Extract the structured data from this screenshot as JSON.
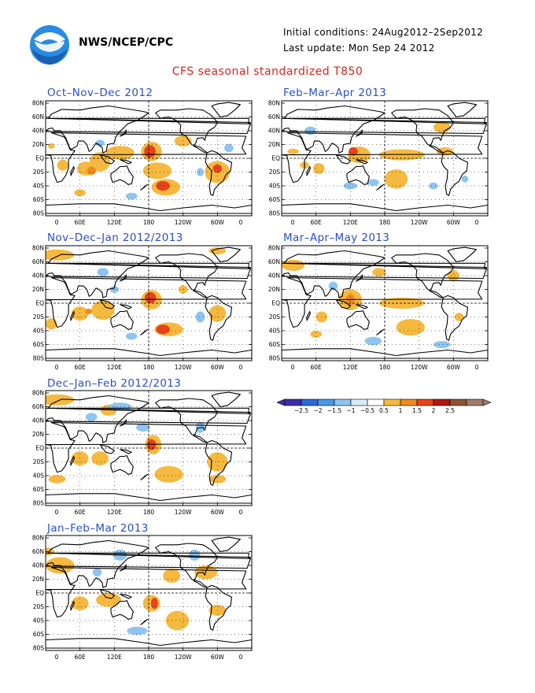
{
  "header": {
    "org": "NWS/NCEP/CPC",
    "initial_conditions": "Initial conditions: 24Aug2012–2Sep2012",
    "last_update": "Last update: Mon Sep 24 2012",
    "main_title": "CFS seasonal standardized T850"
  },
  "panels": [
    {
      "title": "Oct–Nov–Dec 2012"
    },
    {
      "title": "Nov–Dec–Jan 2012/2013"
    },
    {
      "title": "Dec–Jan–Feb 2012/2013"
    },
    {
      "title": "Jan–Feb–Mar 2013"
    },
    {
      "title": "Feb–Mar–Apr 2013"
    },
    {
      "title": "Mar–Apr–May 2013"
    }
  ],
  "lat_labels": [
    "80N",
    "60N",
    "40N",
    "20N",
    "EQ",
    "20S",
    "40S",
    "60S",
    "80S"
  ],
  "lon_labels": [
    "0",
    "60E",
    "120E",
    "180",
    "120W",
    "60W",
    "0"
  ],
  "colorbar": {
    "ticks": [
      "−2.5",
      "−2",
      "−1.5",
      "−1",
      "−0.5",
      "0.5",
      "1",
      "1.5",
      "2",
      "2.5"
    ],
    "colors": [
      "#3a2fa8",
      "#2a6ad8",
      "#4a98e8",
      "#8ec4f0",
      "#d6ecfa",
      "#ffffff",
      "#f6b93f",
      "#f08a1e",
      "#e8421c",
      "#b01810",
      "#8a5438",
      "#a07a6a"
    ]
  },
  "icons": {
    "logo": "noaa-logo"
  }
}
